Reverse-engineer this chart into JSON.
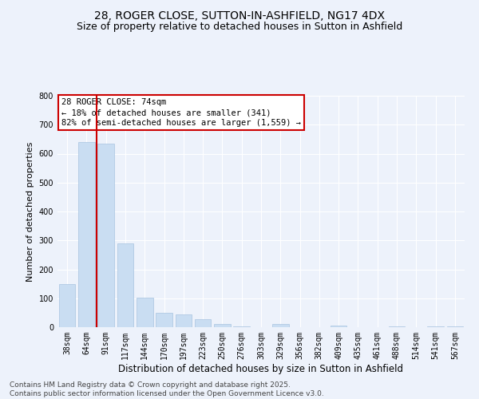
{
  "title_line1": "28, ROGER CLOSE, SUTTON-IN-ASHFIELD, NG17 4DX",
  "title_line2": "Size of property relative to detached houses in Sutton in Ashfield",
  "xlabel": "Distribution of detached houses by size in Sutton in Ashfield",
  "ylabel": "Number of detached properties",
  "categories": [
    "38sqm",
    "64sqm",
    "91sqm",
    "117sqm",
    "144sqm",
    "170sqm",
    "197sqm",
    "223sqm",
    "250sqm",
    "276sqm",
    "303sqm",
    "329sqm",
    "356sqm",
    "382sqm",
    "409sqm",
    "435sqm",
    "461sqm",
    "488sqm",
    "514sqm",
    "541sqm",
    "567sqm"
  ],
  "values": [
    150,
    640,
    635,
    290,
    102,
    50,
    45,
    28,
    12,
    3,
    0,
    12,
    0,
    0,
    5,
    0,
    0,
    3,
    0,
    2,
    2
  ],
  "bar_color": "#c9ddf2",
  "bar_edge_color": "#a8c4e0",
  "vline_x": 1.5,
  "vline_color": "#cc0000",
  "annotation_text": "28 ROGER CLOSE: 74sqm\n← 18% of detached houses are smaller (341)\n82% of semi-detached houses are larger (1,559) →",
  "annotation_box_color": "#ffffff",
  "annotation_box_edge_color": "#cc0000",
  "ylim": [
    0,
    800
  ],
  "yticks": [
    0,
    100,
    200,
    300,
    400,
    500,
    600,
    700,
    800
  ],
  "background_color": "#edf2fb",
  "grid_color": "#ffffff",
  "footer_text": "Contains HM Land Registry data © Crown copyright and database right 2025.\nContains public sector information licensed under the Open Government Licence v3.0.",
  "title_fontsize": 10,
  "subtitle_fontsize": 9,
  "xlabel_fontsize": 8.5,
  "ylabel_fontsize": 8,
  "tick_fontsize": 7,
  "annotation_fontsize": 7.5,
  "footer_fontsize": 6.5
}
